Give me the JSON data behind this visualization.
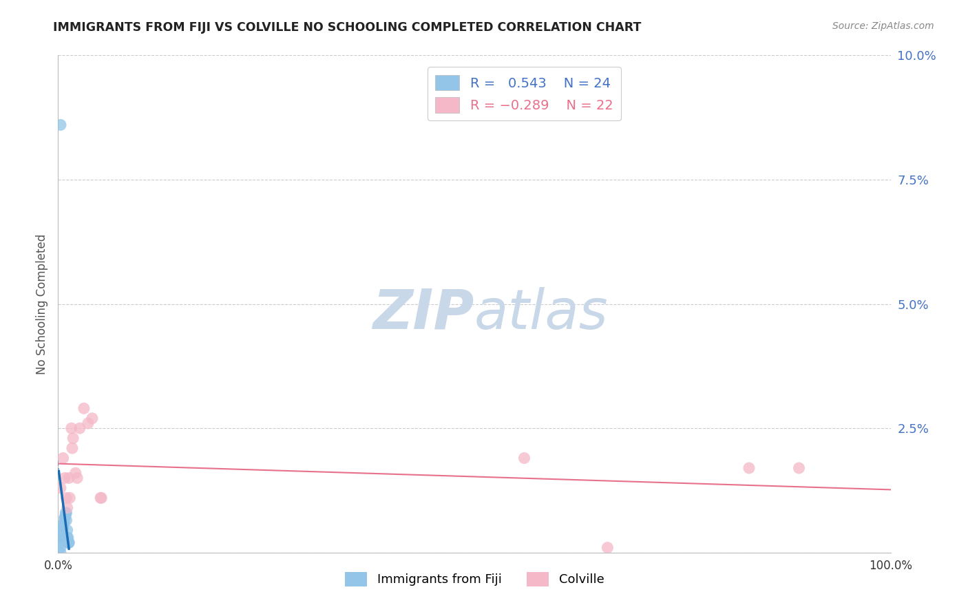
{
  "title": "IMMIGRANTS FROM FIJI VS COLVILLE NO SCHOOLING COMPLETED CORRELATION CHART",
  "source": "Source: ZipAtlas.com",
  "ylabel": "No Schooling Completed",
  "xlim": [
    0.0,
    1.0
  ],
  "ylim": [
    0.0,
    0.1
  ],
  "yticks": [
    0.0,
    0.025,
    0.05,
    0.075,
    0.1
  ],
  "ytick_labels": [
    "",
    "2.5%",
    "5.0%",
    "7.5%",
    "10.0%"
  ],
  "xticks": [
    0.0,
    0.25,
    0.5,
    0.75,
    1.0
  ],
  "xtick_labels": [
    "0.0%",
    "",
    "",
    "",
    "100.0%"
  ],
  "fiji_R": 0.543,
  "fiji_N": 24,
  "colville_R": -0.289,
  "colville_N": 22,
  "fiji_color": "#92c5e8",
  "colville_color": "#f4b8c8",
  "fiji_line_color": "#1a6db5",
  "colville_line_color": "#e8708a",
  "ytick_color": "#4472c4",
  "fiji_x": [
    0.003,
    0.003,
    0.003,
    0.004,
    0.004,
    0.005,
    0.005,
    0.006,
    0.006,
    0.007,
    0.007,
    0.008,
    0.008,
    0.009,
    0.009,
    0.01,
    0.01,
    0.011,
    0.011,
    0.012,
    0.012,
    0.013,
    0.013,
    0.003
  ],
  "fiji_y": [
    0.0,
    0.001,
    0.002,
    0.003,
    0.003,
    0.004,
    0.0045,
    0.005,
    0.005,
    0.006,
    0.006,
    0.007,
    0.007,
    0.0075,
    0.008,
    0.008,
    0.0065,
    0.0045,
    0.003,
    0.003,
    0.002,
    0.002,
    0.002,
    0.086
  ],
  "colville_x": [
    0.003,
    0.006,
    0.008,
    0.01,
    0.011,
    0.013,
    0.014,
    0.016,
    0.017,
    0.018,
    0.021,
    0.023,
    0.026,
    0.031,
    0.036,
    0.041,
    0.051,
    0.052,
    0.56,
    0.66,
    0.83,
    0.89
  ],
  "colville_y": [
    0.013,
    0.019,
    0.015,
    0.011,
    0.009,
    0.015,
    0.011,
    0.025,
    0.021,
    0.023,
    0.016,
    0.015,
    0.025,
    0.029,
    0.026,
    0.027,
    0.011,
    0.011,
    0.019,
    0.001,
    0.017,
    0.017
  ],
  "watermark_zip": "ZIP",
  "watermark_atlas": "atlas",
  "watermark_color": "#c8d8e8",
  "background_color": "#ffffff",
  "grid_color": "#cccccc"
}
